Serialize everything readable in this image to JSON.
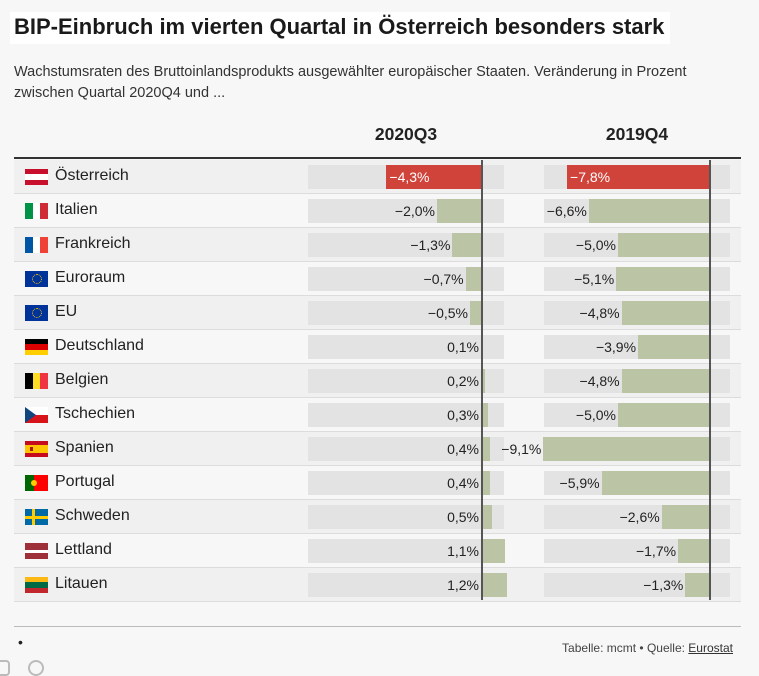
{
  "title": "BIP-Einbruch im vierten Quartal in Österreich besonders stark",
  "subtitle": "Wachstumsraten des Bruttoinlandsprodukts ausgewählter europäischer Staaten. Veränderung in Prozent zwischen Quartal 2020Q4 und ...",
  "footer": {
    "dot": "•",
    "source_prefix": "Tabelle: mcmt • Quelle: ",
    "source_link": "Eurostat"
  },
  "colors": {
    "highlight": "#d0433a",
    "bar": "#bcc4a6",
    "track": "#e3e3e3"
  },
  "chart_data": {
    "type": "bar",
    "columns": [
      "2020Q3",
      "2019Q4"
    ],
    "categories": [
      "Österreich",
      "Italien",
      "Frankreich",
      "Euroraum",
      "EU",
      "Deutschland",
      "Belgien",
      "Tschechien",
      "Spanien",
      "Portugal",
      "Schweden",
      "Lettland",
      "Litauen"
    ],
    "flags": [
      "at",
      "it",
      "fr",
      "eu",
      "eu",
      "de",
      "be",
      "cz",
      "es",
      "pt",
      "se",
      "lv",
      "lt"
    ],
    "series": [
      {
        "name": "2020Q3",
        "values": [
          -4.3,
          -2.0,
          -1.3,
          -0.7,
          -0.5,
          0.1,
          0.2,
          0.3,
          0.4,
          0.4,
          0.5,
          1.1,
          1.2
        ],
        "labels": [
          "−4,3%",
          "−2,0%",
          "−1,3%",
          "−0,7%",
          "−0,5%",
          "0,1%",
          "0,2%",
          "0,3%",
          "0,4%",
          "0,4%",
          "0,5%",
          "1,1%",
          "1,2%"
        ]
      },
      {
        "name": "2019Q4",
        "values": [
          -7.8,
          -6.6,
          -5.0,
          -5.1,
          -4.8,
          -3.9,
          -4.8,
          -5.0,
          -9.1,
          -5.9,
          -2.6,
          -1.7,
          -1.3
        ],
        "labels": [
          "−7,8%",
          "−6,6%",
          "−5,0%",
          "−5,1%",
          "−4,8%",
          "−3,9%",
          "−4,8%",
          "−5,0%",
          "−9,1%",
          "−5,9%",
          "−2,6%",
          "−1,7%",
          "−1,3%"
        ]
      }
    ],
    "highlight_category": "Österreich"
  }
}
